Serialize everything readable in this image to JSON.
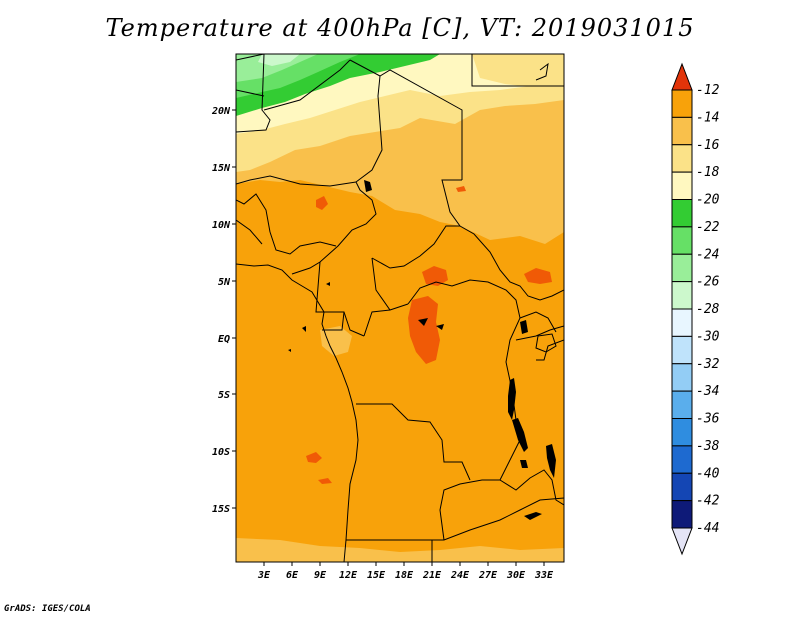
{
  "title": "Temperature at 400hPa [C], VT: 2019031015",
  "credit": "GrADS: IGES/COLA",
  "map": {
    "lon_labels": [
      "3E",
      "6E",
      "9E",
      "12E",
      "15E",
      "18E",
      "21E",
      "24E",
      "27E",
      "30E",
      "33E"
    ],
    "lat_labels": [
      "20N",
      "15N",
      "10N",
      "5N",
      "EQ",
      "5S",
      "10S",
      "15S"
    ],
    "base_color": "#f8a20a"
  },
  "colorbar": {
    "levels": [
      {
        "label": "-12",
        "color": "#f05a06"
      },
      {
        "label": "-14",
        "color": "#f8a20a"
      },
      {
        "label": "-16",
        "color": "#f9c04b"
      },
      {
        "label": "-18",
        "color": "#fbe288"
      },
      {
        "label": "-20",
        "color": "#fff8c0"
      },
      {
        "label": "-22",
        "color": "#33cc33"
      },
      {
        "label": "-24",
        "color": "#66e066"
      },
      {
        "label": "-26",
        "color": "#99ee99"
      },
      {
        "label": "-28",
        "color": "#ccf8cc"
      },
      {
        "label": "-30",
        "color": "#e8f6ff"
      },
      {
        "label": "-32",
        "color": "#bfe3fb"
      },
      {
        "label": "-34",
        "color": "#93cdf5"
      },
      {
        "label": "-36",
        "color": "#5aaeec"
      },
      {
        "label": "-38",
        "color": "#2f8de0"
      },
      {
        "label": "-40",
        "color": "#1e6ad0"
      },
      {
        "label": "-42",
        "color": "#1446b4"
      },
      {
        "label": "-44",
        "color": "#0e1a78"
      }
    ],
    "top_arrow_color": "#e2340a",
    "bottom_arrow_color": "#e4e4f6"
  }
}
